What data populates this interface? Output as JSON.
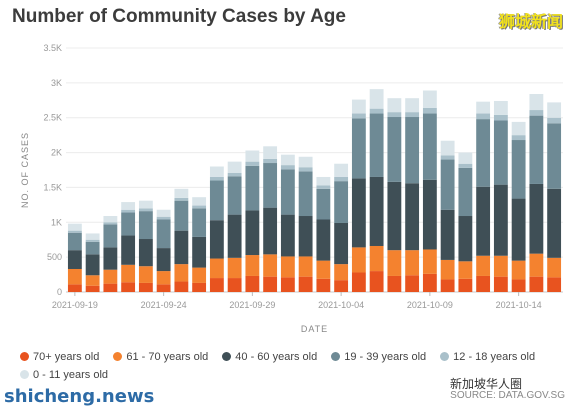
{
  "chart_data": {
    "type": "bar",
    "stacked": true,
    "title": "Number of Community Cases by Age",
    "xlabel": "DATE",
    "ylabel": "NO. OF CASES",
    "ylim": [
      0,
      3500
    ],
    "yticks": [
      "0",
      "500",
      "1K",
      "1.5K",
      "2K",
      "2.5K",
      "3K",
      "3.5K"
    ],
    "xticks": [
      {
        "index": 0,
        "label": "2021-09-19"
      },
      {
        "index": 5,
        "label": "2021-09-24"
      },
      {
        "index": 10,
        "label": "2021-09-29"
      },
      {
        "index": 15,
        "label": "2021-10-04"
      },
      {
        "index": 20,
        "label": "2021-10-09"
      },
      {
        "index": 25,
        "label": "2021-10-14"
      }
    ],
    "categories": [
      "2021-09-19",
      "2021-09-20",
      "2021-09-21",
      "2021-09-22",
      "2021-09-23",
      "2021-09-24",
      "2021-09-25",
      "2021-09-26",
      "2021-09-27",
      "2021-09-28",
      "2021-09-29",
      "2021-09-30",
      "2021-10-01",
      "2021-10-02",
      "2021-10-03",
      "2021-10-04",
      "2021-10-05",
      "2021-10-06",
      "2021-10-07",
      "2021-10-08",
      "2021-10-09",
      "2021-10-10",
      "2021-10-11",
      "2021-10-12",
      "2021-10-13",
      "2021-10-14",
      "2021-10-15",
      "2021-10-16"
    ],
    "series": [
      {
        "name": "70+ years old",
        "color": "#e8531f",
        "values": [
          110,
          90,
          120,
          140,
          130,
          110,
          150,
          130,
          200,
          200,
          230,
          220,
          210,
          220,
          190,
          170,
          280,
          300,
          230,
          240,
          260,
          180,
          190,
          230,
          220,
          180,
          220,
          210
        ]
      },
      {
        "name": "61 - 70 years old",
        "color": "#f4822f",
        "values": [
          220,
          150,
          200,
          250,
          240,
          190,
          250,
          220,
          280,
          290,
          300,
          320,
          300,
          290,
          260,
          230,
          360,
          360,
          370,
          360,
          350,
          280,
          250,
          290,
          300,
          270,
          330,
          280
        ]
      },
      {
        "name": "40 - 60 years old",
        "color": "#3f4f56",
        "values": [
          270,
          300,
          320,
          420,
          390,
          330,
          480,
          440,
          550,
          620,
          640,
          670,
          600,
          580,
          590,
          590,
          990,
          990,
          980,
          960,
          1000,
          720,
          650,
          990,
          1020,
          890,
          1000,
          990
        ]
      },
      {
        "name": "19 - 39 years old",
        "color": "#6e8a95",
        "values": [
          250,
          180,
          330,
          330,
          400,
          410,
          430,
          410,
          570,
          550,
          640,
          640,
          650,
          640,
          440,
          600,
          860,
          910,
          930,
          950,
          950,
          720,
          690,
          970,
          920,
          840,
          980,
          940
        ]
      },
      {
        "name": "12 - 18 years old",
        "color": "#a9c0ca",
        "values": [
          30,
          30,
          30,
          40,
          40,
          40,
          40,
          40,
          50,
          50,
          60,
          60,
          60,
          60,
          50,
          60,
          70,
          70,
          70,
          70,
          80,
          60,
          60,
          80,
          80,
          70,
          80,
          80
        ]
      },
      {
        "name": "0 - 11 years old",
        "color": "#d9e4e9",
        "values": [
          100,
          90,
          90,
          110,
          110,
          100,
          130,
          120,
          150,
          160,
          160,
          180,
          150,
          150,
          120,
          190,
          200,
          280,
          200,
          200,
          250,
          210,
          160,
          170,
          200,
          190,
          230,
          220
        ]
      }
    ]
  },
  "watermarks": {
    "top_right": "狮城新闻",
    "bottom_left": "shicheng.news",
    "bottom_mid": "新加坡华人圈"
  },
  "source": "SOURCE: DATA.GOV.SG"
}
